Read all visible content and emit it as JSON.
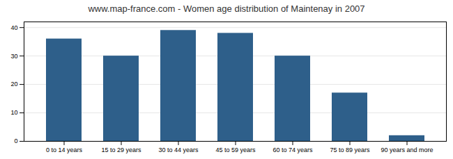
{
  "chart_data": {
    "type": "bar",
    "title": "www.map-france.com - Women age distribution of Maintenay in 2007",
    "categories": [
      "0 to 14 years",
      "15 to 29 years",
      "30 to 44 years",
      "45 to 59 years",
      "60 to 74 years",
      "75 to 89 years",
      "90 years and more"
    ],
    "values": [
      36,
      30,
      39,
      38,
      30,
      17,
      2
    ],
    "color": "#2e5f8a",
    "ylim": [
      0,
      42
    ],
    "yticks": [
      0,
      10,
      20,
      30,
      40
    ],
    "grid": true
  }
}
